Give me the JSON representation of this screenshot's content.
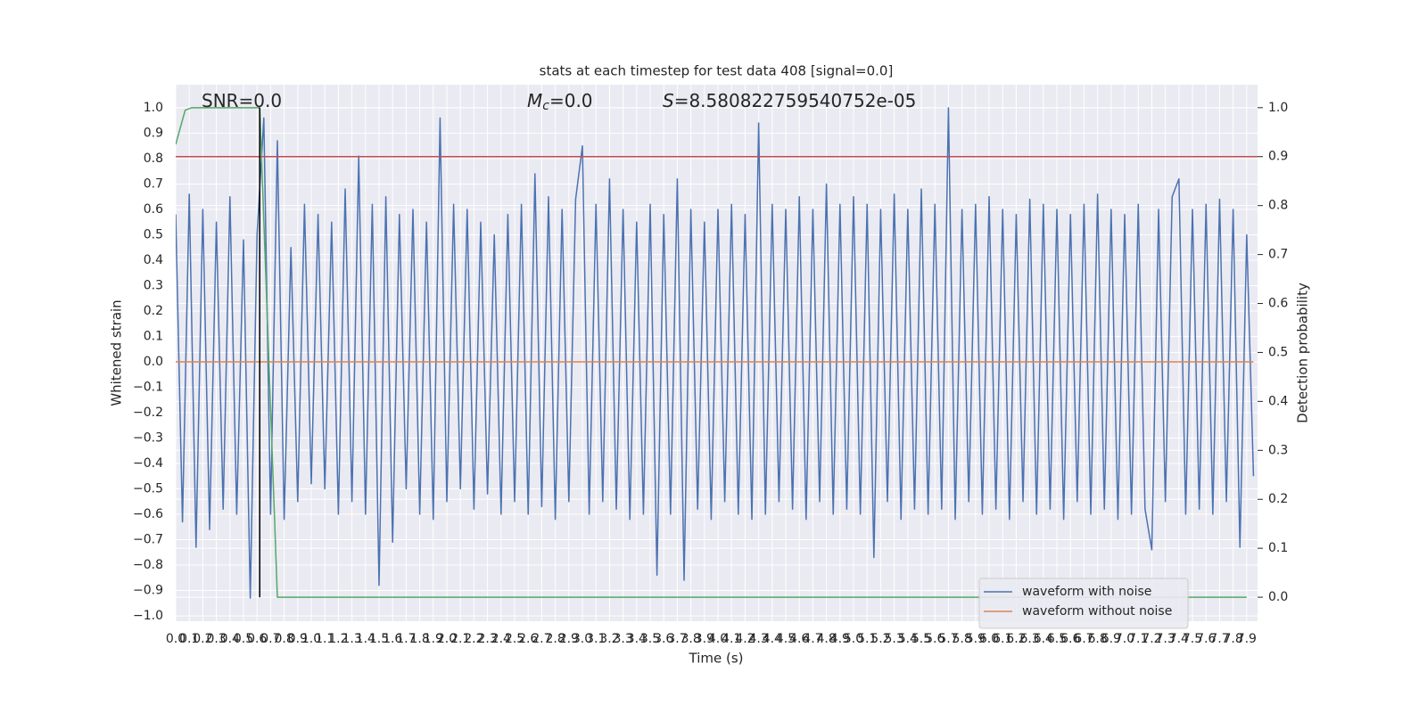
{
  "chart_data": {
    "type": "line",
    "title": "stats at each timestep for test data 408 [signal=0.0]",
    "x_label": "Time (s)",
    "y_label": "Whitened strain",
    "y2_label": "Detection probability",
    "grid": true,
    "legend": "lower right",
    "annotations": [
      {
        "text": "SNR=0.0"
      },
      {
        "symbol": "M",
        "subscript": "c",
        "text": "=0.0"
      },
      {
        "symbol": "S",
        "text": "=8.580822759540752e-05"
      }
    ],
    "xlim": [
      0,
      7.98
    ],
    "ylim": [
      -1.021,
      1.091
    ],
    "y2lim": [
      -0.049,
      1.047
    ],
    "xticks": [
      {
        "value": 0,
        "label": "0.0"
      },
      0.1,
      0.2,
      0.3,
      0.4,
      0.5,
      0.6,
      0.7,
      0.8,
      0.9,
      {
        "value": 1,
        "label": "1.0"
      },
      1.1,
      1.2,
      1.3,
      1.4,
      1.5,
      1.6,
      1.7,
      1.8,
      1.9,
      {
        "value": 2,
        "label": "2.0"
      },
      2.1,
      2.2,
      2.3,
      2.4,
      2.5,
      2.6,
      2.7,
      2.8,
      2.9,
      {
        "value": 3,
        "label": "3.0"
      },
      3.1,
      3.2,
      3.3,
      3.4,
      3.5,
      3.6,
      3.7,
      3.8,
      3.9,
      {
        "value": 4,
        "label": "4.0"
      },
      4.1,
      4.2,
      4.3,
      4.4,
      4.5,
      4.6,
      4.7,
      4.8,
      4.9,
      {
        "value": 5,
        "label": "5.0"
      },
      5.1,
      5.2,
      5.3,
      5.4,
      5.5,
      5.6,
      5.7,
      5.8,
      5.9,
      {
        "value": 6,
        "label": "6.0"
      },
      6.1,
      6.2,
      6.3,
      6.4,
      6.5,
      6.6,
      6.7,
      6.8,
      6.9,
      {
        "value": 7,
        "label": "7.0"
      },
      7.1,
      7.2,
      7.3,
      7.4,
      7.5,
      7.6,
      7.7,
      7.8,
      7.9
    ],
    "yticks": [
      {
        "value": -1,
        "label": "−1.0"
      },
      {
        "value": -0.9,
        "label": "−0.9"
      },
      {
        "value": -0.8,
        "label": "−0.8"
      },
      {
        "value": -0.7,
        "label": "−0.7"
      },
      {
        "value": -0.6,
        "label": "−0.6"
      },
      {
        "value": -0.5,
        "label": "−0.5"
      },
      {
        "value": -0.4,
        "label": "−0.4"
      },
      {
        "value": -0.3,
        "label": "−0.3"
      },
      {
        "value": -0.2,
        "label": "−0.2"
      },
      {
        "value": -0.1,
        "label": "−0.1"
      },
      {
        "value": 0,
        "label": "0.0"
      },
      0.1,
      0.2,
      0.3,
      0.4,
      0.5,
      0.6,
      0.7,
      0.8,
      0.9,
      {
        "value": 1,
        "label": "1.0"
      }
    ],
    "y2ticks": [
      {
        "value": 0,
        "label": "0.0"
      },
      0.1,
      0.2,
      0.3,
      0.4,
      0.5,
      0.6,
      0.7,
      0.8,
      0.9,
      {
        "value": 1,
        "label": "1.0"
      }
    ],
    "series": [
      {
        "name": "waveform with noise",
        "color": "#4c72b0",
        "x": [
          0,
          0.05,
          0.1,
          0.15,
          0.2,
          0.25,
          0.3,
          0.35,
          0.4,
          0.45,
          0.5,
          0.55,
          0.6,
          0.65,
          0.7,
          0.75,
          0.8,
          0.85,
          0.9,
          0.95,
          1.0,
          1.05,
          1.1,
          1.15,
          1.2,
          1.25,
          1.3,
          1.35,
          1.4,
          1.45,
          1.5,
          1.55,
          1.6,
          1.65,
          1.7,
          1.75,
          1.8,
          1.85,
          1.9,
          1.95,
          2.0,
          2.05,
          2.1,
          2.15,
          2.2,
          2.25,
          2.3,
          2.35,
          2.4,
          2.45,
          2.5,
          2.55,
          2.6,
          2.65,
          2.7,
          2.75,
          2.8,
          2.85,
          2.9,
          2.95,
          3.0,
          3.05,
          3.1,
          3.15,
          3.2,
          3.25,
          3.3,
          3.35,
          3.4,
          3.45,
          3.5,
          3.55,
          3.6,
          3.65,
          3.7,
          3.75,
          3.8,
          3.85,
          3.9,
          3.95,
          4.0,
          4.05,
          4.1,
          4.15,
          4.2,
          4.25,
          4.3,
          4.35,
          4.4,
          4.45,
          4.5,
          4.55,
          4.6,
          4.65,
          4.7,
          4.75,
          4.8,
          4.85,
          4.9,
          4.95,
          5.0,
          5.05,
          5.1,
          5.15,
          5.2,
          5.25,
          5.3,
          5.35,
          5.4,
          5.45,
          5.5,
          5.55,
          5.6,
          5.65,
          5.7,
          5.75,
          5.8,
          5.85,
          5.9,
          5.95,
          6.0,
          6.05,
          6.1,
          6.15,
          6.2,
          6.25,
          6.3,
          6.35,
          6.4,
          6.45,
          6.5,
          6.55,
          6.6,
          6.65,
          6.7,
          6.75,
          6.8,
          6.85,
          6.9,
          6.95,
          7.0,
          7.05,
          7.1,
          7.15,
          7.2,
          7.25,
          7.3,
          7.35,
          7.4,
          7.45,
          7.5,
          7.55,
          7.6,
          7.65,
          7.7,
          7.75,
          7.8,
          7.85,
          7.9,
          7.95
        ],
        "values": [
          0.58,
          -0.63,
          0.66,
          -0.73,
          0.6,
          -0.66,
          0.55,
          -0.58,
          0.65,
          -0.6,
          0.48,
          -0.93,
          0.5,
          0.96,
          -0.6,
          0.87,
          -0.62,
          0.45,
          -0.55,
          0.62,
          -0.48,
          0.58,
          -0.5,
          0.55,
          -0.6,
          0.68,
          -0.55,
          0.81,
          -0.6,
          0.62,
          -0.88,
          0.65,
          -0.71,
          0.58,
          -0.5,
          0.6,
          -0.6,
          0.55,
          -0.62,
          0.96,
          -0.55,
          0.62,
          -0.5,
          0.6,
          -0.58,
          0.55,
          -0.52,
          0.5,
          -0.6,
          0.58,
          -0.55,
          0.62,
          -0.6,
          0.74,
          -0.57,
          0.65,
          -0.62,
          0.6,
          -0.55,
          0.64,
          0.85,
          -0.6,
          0.62,
          -0.55,
          0.72,
          -0.58,
          0.6,
          -0.62,
          0.55,
          -0.6,
          0.62,
          -0.84,
          0.58,
          -0.6,
          0.72,
          -0.86,
          0.6,
          -0.58,
          0.55,
          -0.62,
          0.6,
          -0.55,
          0.62,
          -0.6,
          0.58,
          -0.62,
          0.94,
          -0.6,
          0.62,
          -0.55,
          0.6,
          -0.58,
          0.65,
          -0.62,
          0.6,
          -0.55,
          0.7,
          -0.6,
          0.62,
          -0.58,
          0.65,
          -0.6,
          0.62,
          -0.77,
          0.6,
          -0.55,
          0.66,
          -0.62,
          0.6,
          -0.58,
          0.68,
          -0.6,
          0.62,
          -0.58,
          1.0,
          -0.62,
          0.6,
          -0.55,
          0.62,
          -0.6,
          0.65,
          -0.58,
          0.6,
          -0.62,
          0.58,
          -0.55,
          0.64,
          -0.6,
          0.62,
          -0.58,
          0.6,
          -0.62,
          0.58,
          -0.55,
          0.62,
          -0.6,
          0.66,
          -0.58,
          0.6,
          -0.62,
          0.58,
          -0.6,
          0.62,
          -0.58,
          -0.74,
          0.6,
          -0.55,
          0.65,
          0.72,
          -0.6,
          0.6,
          -0.58,
          0.62,
          -0.6,
          0.64,
          -0.55,
          0.6,
          -0.73,
          0.5,
          -0.45
        ]
      },
      {
        "name": "waveform without noise",
        "color": "#dd8452",
        "x": [
          0,
          7.95
        ],
        "values": [
          0,
          0
        ]
      },
      {
        "color": "#55a868",
        "axis": "y2",
        "x": [
          0,
          0.07,
          0.12,
          0.62,
          0.75,
          7.9
        ],
        "values": [
          0.925,
          0.995,
          1.0,
          1.0,
          0,
          0
        ]
      }
    ],
    "hlines": [
      {
        "value": 0.9,
        "axis": "y2",
        "color": "#c44e52"
      }
    ],
    "vlines": [
      {
        "x": 0.62,
        "ymin": 0,
        "ymax": 1,
        "axis": "y2",
        "color": "#000000"
      }
    ]
  }
}
